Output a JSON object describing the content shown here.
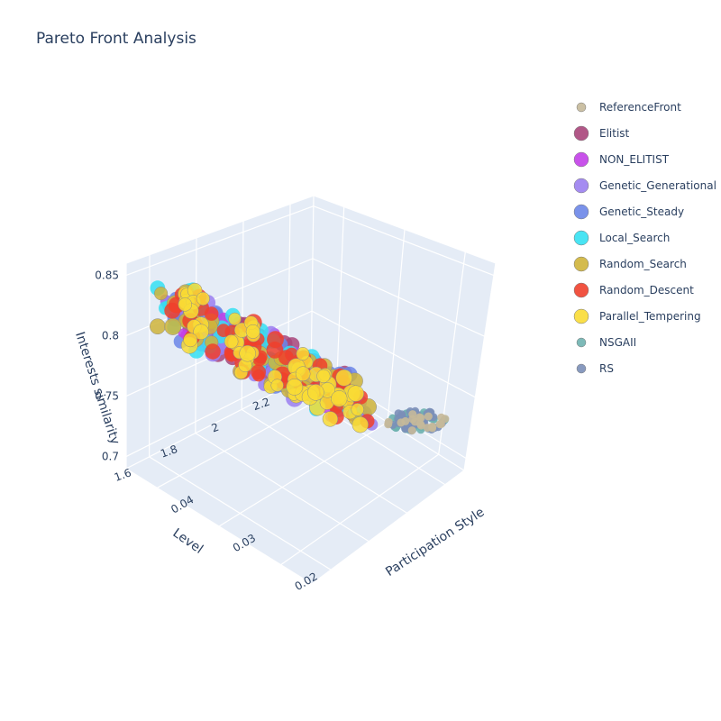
{
  "chart_data": {
    "type": "scatter3d",
    "title": "Pareto Front Analysis",
    "axes": {
      "x": {
        "label": "Participation Style",
        "ticks": [
          "0.02",
          "0.03",
          "0.04"
        ],
        "range": [
          0.015,
          0.045
        ]
      },
      "y": {
        "label": "Level",
        "ticks": [
          "1.6",
          "1.8",
          "2",
          "2.2"
        ],
        "range": [
          1.5,
          2.3
        ]
      },
      "z": {
        "label": "Interests similarity",
        "ticks": [
          "0.7",
          "0.75",
          "0.8",
          "0.85"
        ],
        "range": [
          0.69,
          0.86
        ]
      }
    },
    "grid": true,
    "legend_placement": "right",
    "series": [
      {
        "name": "ReferenceFront",
        "color": "#c5b99a",
        "size": "small"
      },
      {
        "name": "Elitist",
        "color": "#a8457a",
        "size": "large"
      },
      {
        "name": "NON_ELITIST",
        "color": "#c23fe8",
        "size": "medium"
      },
      {
        "name": "Genetic_Generational",
        "color": "#9b7ff0",
        "size": "large"
      },
      {
        "name": "Genetic_Steady",
        "color": "#6b86e8",
        "size": "large"
      },
      {
        "name": "Local_Search",
        "color": "#35e1f2",
        "size": "large"
      },
      {
        "name": "Random_Search",
        "color": "#cfb43a",
        "size": "large"
      },
      {
        "name": "Random_Descent",
        "color": "#f0402c",
        "size": "large"
      },
      {
        "name": "Parallel_Tempering",
        "color": "#f9dc35",
        "size": "large"
      },
      {
        "name": "NSGAII",
        "color": "#6fb3b0",
        "size": "small"
      },
      {
        "name": "RS",
        "color": "#7b8fb8",
        "size": "small"
      }
    ]
  }
}
